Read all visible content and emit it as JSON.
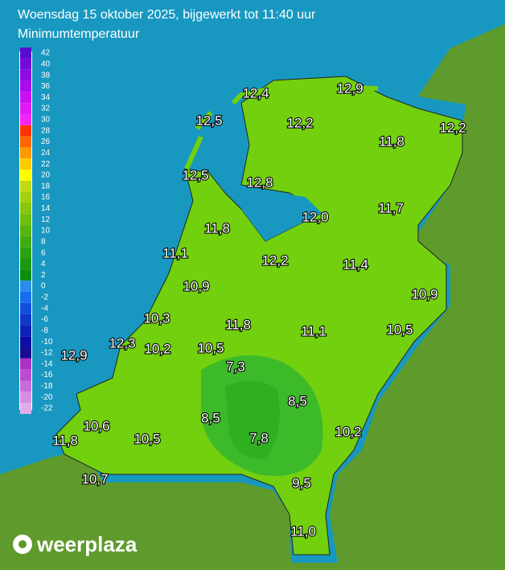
{
  "header": {
    "title": "Woensdag 15 oktober 2025, bijgewerkt tot 11:40 uur",
    "subtitle": "Minimumtemperatuur"
  },
  "legend": {
    "ticks": [
      42,
      40,
      38,
      36,
      34,
      32,
      30,
      28,
      26,
      24,
      22,
      20,
      18,
      16,
      14,
      12,
      10,
      8,
      6,
      4,
      2,
      0,
      -2,
      -4,
      -6,
      -8,
      -10,
      -12,
      -14,
      -16,
      -18,
      -20,
      -22
    ]
  },
  "stations": [
    "12,4",
    "12,9",
    "12,5",
    "12,2",
    "12,2",
    "11,8",
    "12,5",
    "12,8",
    "12,0",
    "11,7",
    "11,8",
    "11,1",
    "12,2",
    "11,4",
    "10,9",
    "10,9",
    "10,3",
    "11,8",
    "11,1",
    "10,5",
    "12,3",
    "12,9",
    "10,2",
    "10,5",
    "7,3",
    "8,5",
    "8,5",
    "10,6",
    "10,2",
    "11,8",
    "10,5",
    "7,8",
    "9,5",
    "10,7",
    "11,0"
  ],
  "logo": "weerplaza"
}
